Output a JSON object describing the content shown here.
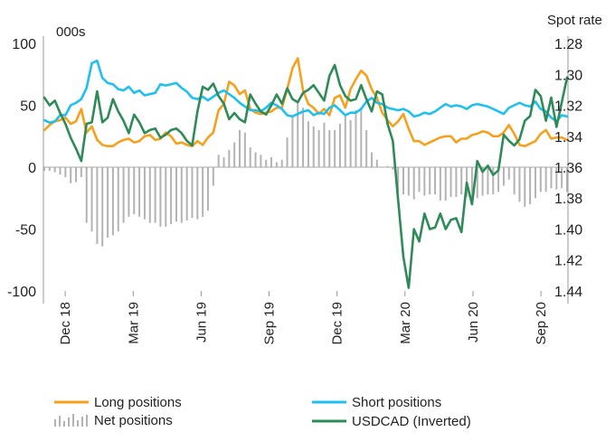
{
  "chart_data": {
    "type": "line",
    "left_axis_unit": "000s",
    "right_axis_unit": "Spot rate",
    "y_left_ticks": [
      "100",
      "50",
      "0",
      "-50",
      "-100"
    ],
    "y_left_range": [
      -100,
      100
    ],
    "y_right_ticks": [
      "1.28",
      "1.30",
      "1.32",
      "1.34",
      "1.36",
      "1.38",
      "1.40",
      "1.42",
      "1.44"
    ],
    "y_right_range": [
      1.28,
      1.44
    ],
    "y_right_inverted": true,
    "x_start_week": 0,
    "x_end_week": 100,
    "x_ticks": [
      {
        "label": "Dec 18",
        "week": 4
      },
      {
        "label": "Mar 19",
        "week": 17
      },
      {
        "label": "Jun 19",
        "week": 30
      },
      {
        "label": "Sep 19",
        "week": 43
      },
      {
        "label": "Dec 19",
        "week": 56
      },
      {
        "label": "Mar 20",
        "week": 69
      },
      {
        "label": "Jun 20",
        "week": 82
      },
      {
        "label": "Sep 20",
        "week": 95
      }
    ],
    "colors": {
      "long": "#f5a11d",
      "short": "#1ec0f0",
      "net": "#b3b3b3",
      "usdcad": "#2e8b57"
    },
    "legend": {
      "long": "Long positions",
      "short": "Short positions",
      "net": "Net positions",
      "usdcad": "USDCAD (Inverted)"
    },
    "series": [
      {
        "key": "long",
        "name": "Long positions",
        "axis": "left",
        "values": [
          30,
          34,
          37,
          38,
          40,
          35,
          37,
          47,
          28,
          33,
          22,
          18,
          17,
          17,
          20,
          22,
          23,
          20,
          21,
          25,
          26,
          22,
          23,
          28,
          25,
          19,
          20,
          18,
          17,
          21,
          18,
          24,
          28,
          46,
          51,
          69,
          66,
          59,
          62,
          47,
          44,
          43,
          44,
          45,
          48,
          48,
          63,
          80,
          88,
          62,
          51,
          48,
          43,
          47,
          42,
          56,
          58,
          48,
          63,
          71,
          78,
          74,
          63,
          56,
          44,
          38,
          33,
          37,
          43,
          31,
          21,
          21,
          18,
          20,
          22,
          24,
          25,
          25,
          20,
          23,
          23,
          26,
          27,
          29,
          28,
          25,
          25,
          28,
          34,
          27,
          18,
          17,
          19,
          21,
          27,
          30,
          23,
          24,
          24,
          22
        ]
      },
      {
        "key": "short",
        "name": "Short positions",
        "axis": "left",
        "values": [
          38,
          36,
          37,
          42,
          42,
          50,
          52,
          55,
          64,
          84,
          86,
          72,
          68,
          67,
          63,
          62,
          65,
          60,
          62,
          58,
          59,
          60,
          67,
          66,
          67,
          68,
          64,
          61,
          56,
          55,
          57,
          54,
          57,
          60,
          62,
          59,
          56,
          52,
          49,
          46,
          46,
          45,
          48,
          52,
          50,
          47,
          42,
          41,
          43,
          45,
          46,
          42,
          44,
          43,
          48,
          50,
          46,
          42,
          44,
          44,
          47,
          53,
          56,
          52,
          51,
          48,
          47,
          46,
          47,
          45,
          41,
          42,
          44,
          43,
          45,
          48,
          51,
          49,
          50,
          49,
          47,
          50,
          51,
          50,
          49,
          47,
          45,
          43,
          48,
          50,
          52,
          50,
          49,
          53,
          47,
          45,
          40,
          37,
          42,
          41
        ]
      },
      {
        "key": "net",
        "name": "Net positions",
        "axis": "left",
        "values": [
          -3,
          -3,
          -4,
          -6,
          -8,
          -13,
          -12,
          -8,
          -45,
          -52,
          -62,
          -64,
          -57,
          -55,
          -52,
          -45,
          -40,
          -38,
          -40,
          -42,
          -45,
          -45,
          -48,
          -48,
          -46,
          -44,
          -45,
          -43,
          -41,
          -42,
          -40,
          -35,
          -15,
          10,
          8,
          14,
          20,
          30,
          28,
          16,
          12,
          10,
          6,
          8,
          4,
          6,
          24,
          42,
          52,
          48,
          37,
          33,
          30,
          36,
          30,
          30,
          35,
          43,
          38,
          46,
          48,
          30,
          12,
          6,
          0,
          1,
          -2,
          -20,
          -22,
          -23,
          -26,
          -20,
          -23,
          -22,
          -22,
          -27,
          -27,
          -24,
          -24,
          -22,
          -24,
          -25,
          -25,
          -23,
          -22,
          -22,
          -20,
          -15,
          -10,
          -22,
          -28,
          -32,
          -30,
          -25,
          -20,
          -20,
          -17,
          -18,
          -17,
          -20
        ]
      },
      {
        "key": "usdcad",
        "name": "USDCAD (Inverted)",
        "axis": "right",
        "values": [
          1.315,
          1.32,
          1.317,
          1.325,
          1.332,
          1.341,
          1.348,
          1.356,
          1.332,
          1.331,
          1.311,
          1.331,
          1.328,
          1.316,
          1.324,
          1.33,
          1.338,
          1.326,
          1.331,
          1.338,
          1.336,
          1.335,
          1.341,
          1.339,
          1.336,
          1.335,
          1.338,
          1.343,
          1.346,
          1.324,
          1.308,
          1.31,
          1.306,
          1.314,
          1.319,
          1.329,
          1.325,
          1.329,
          1.331,
          1.313,
          1.319,
          1.324,
          1.326,
          1.32,
          1.313,
          1.319,
          1.309,
          1.316,
          1.318,
          1.312,
          1.31,
          1.307,
          1.312,
          1.317,
          1.301,
          1.294,
          1.307,
          1.314,
          1.317,
          1.316,
          1.307,
          1.316,
          1.324,
          1.311,
          1.313,
          1.332,
          1.343,
          1.381,
          1.418,
          1.438,
          1.4,
          1.408,
          1.39,
          1.4,
          1.399,
          1.39,
          1.4,
          1.394,
          1.393,
          1.402,
          1.37,
          1.384,
          1.356,
          1.363,
          1.359,
          1.365,
          1.362,
          1.339,
          1.343,
          1.346,
          1.342,
          1.33,
          1.327,
          1.31,
          1.314,
          1.33,
          1.315,
          1.334,
          1.318,
          1.302
        ]
      }
    ]
  }
}
